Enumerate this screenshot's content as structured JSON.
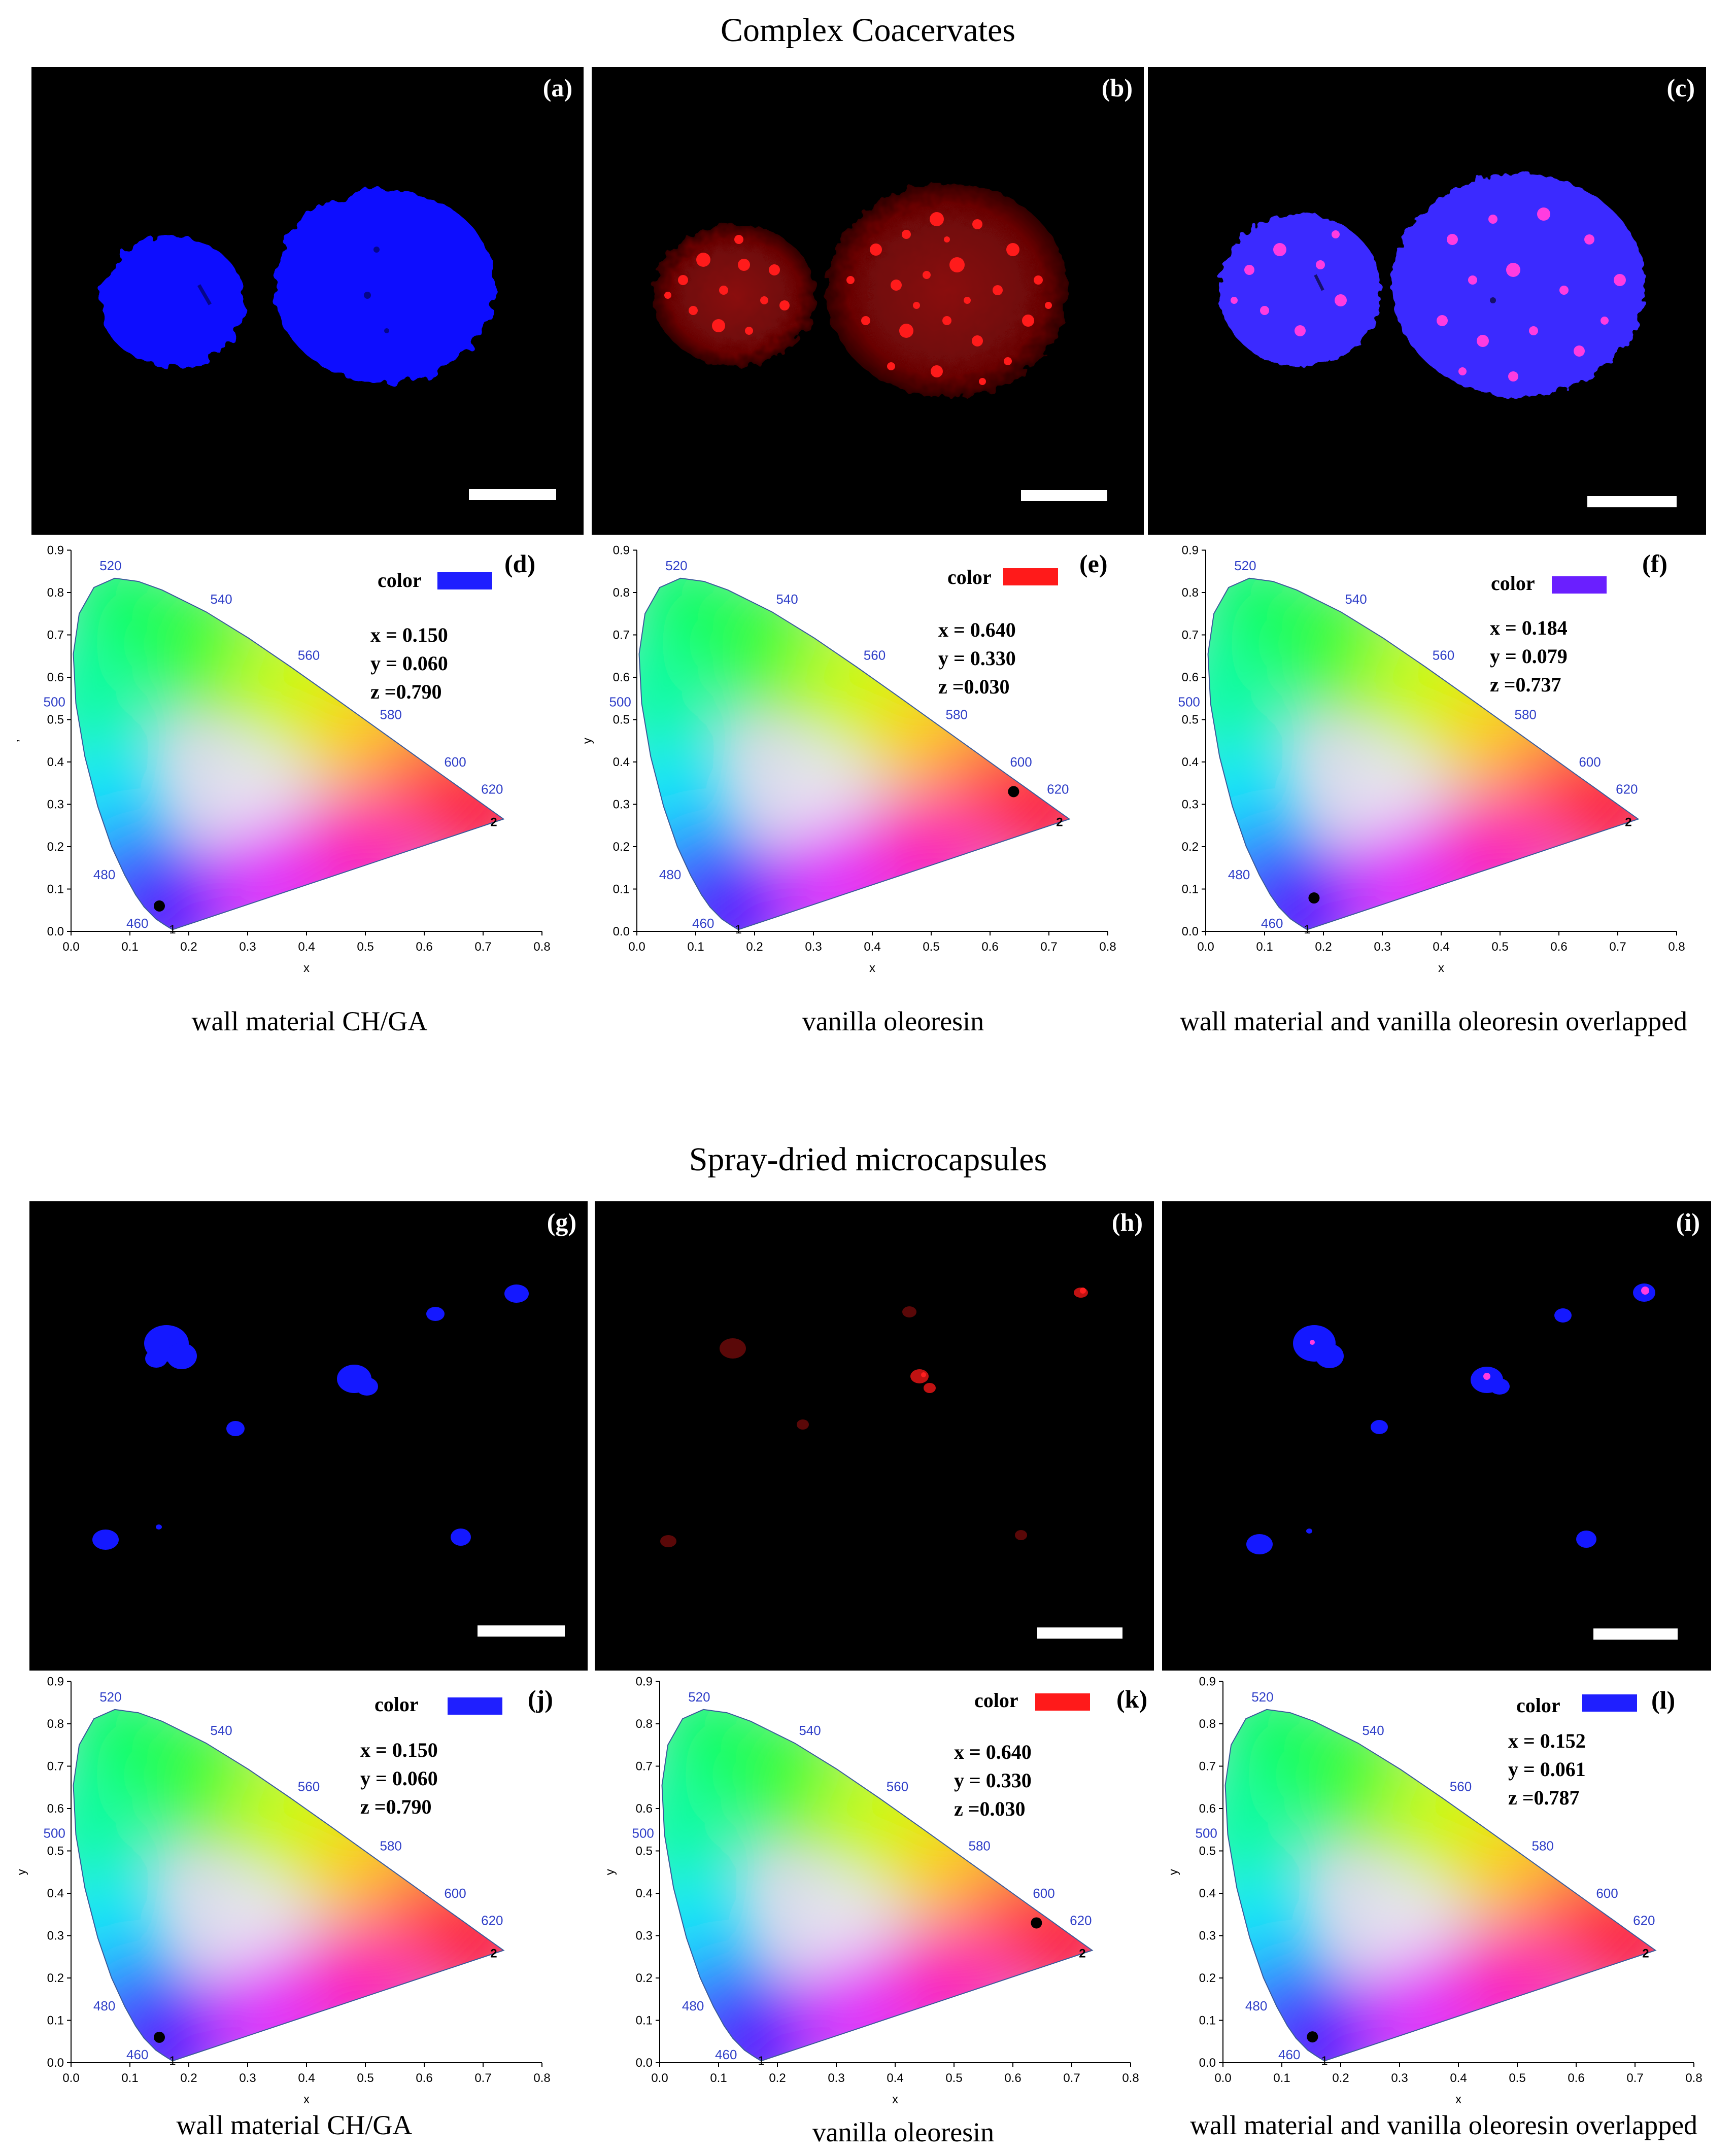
{
  "sections": [
    {
      "title": "Complex Coacervates",
      "micrographs": [
        {
          "letter": "(a)",
          "kind": "blue"
        },
        {
          "letter": "(b)",
          "kind": "red"
        },
        {
          "letter": "(c)",
          "kind": "overlap"
        }
      ],
      "charts": [
        {
          "letter": "(d)",
          "color_label": "color",
          "swatch": "#1f1fff",
          "x_line": "x = 0.150",
          "y_line": "y = 0.060",
          "z_line": "z =0.790",
          "caption": "wall material CH/GA",
          "ylabel": "’"
        },
        {
          "letter": "(e)",
          "color_label": "color",
          "swatch": "#ff1a1a",
          "x_line": "x = 0.640",
          "y_line": "y = 0.330",
          "z_line": "z =0.030",
          "caption": "vanilla oleoresin",
          "ylabel": "y"
        },
        {
          "letter": "(f)",
          "color_label": "color",
          "swatch": "#6a1fff",
          "x_line": "x = 0.184",
          "y_line": "y = 0.079",
          "z_line": "z =0.737",
          "caption": "wall material and vanilla oleoresin overlapped",
          "ylabel": ""
        }
      ]
    },
    {
      "title": "Spray-dried microcapsules",
      "micrographs": [
        {
          "letter": "(g)",
          "kind": "blue"
        },
        {
          "letter": "(h)",
          "kind": "red"
        },
        {
          "letter": "(i)",
          "kind": "overlap"
        }
      ],
      "charts": [
        {
          "letter": "(j)",
          "color_label": "color",
          "swatch": "#1f1fff",
          "x_line": "x = 0.150",
          "y_line": "y = 0.060",
          "z_line": "z =0.790",
          "caption": "wall material CH/GA",
          "ylabel": "y"
        },
        {
          "letter": "(k)",
          "color_label": "color",
          "swatch": "#ff1a1a",
          "x_line": "x = 0.640",
          "y_line": "y = 0.330",
          "z_line": "z =0.030",
          "caption": "vanilla oleoresin",
          "ylabel": "y"
        },
        {
          "letter": "(l)",
          "color_label": "color",
          "swatch": "#1f1fff",
          "x_line": "x = 0.152",
          "y_line": "y = 0.061",
          "z_line": "z =0.787",
          "caption": "wall material and vanilla oleoresin overlapped",
          "ylabel": "y"
        }
      ]
    }
  ],
  "chart_data": [
    {
      "panel": "(d)",
      "type": "scatter",
      "x": [
        0.15
      ],
      "y": [
        0.06
      ],
      "xlabel": "x",
      "ylabel": "’",
      "xlim": [
        0.0,
        0.8
      ],
      "ylim": [
        0.0,
        0.9
      ],
      "wavelength_labels": [
        "460",
        "480",
        "500",
        "520",
        "540",
        "560",
        "580",
        "600",
        "620"
      ]
    },
    {
      "panel": "(e)",
      "type": "scatter",
      "x": [
        0.64
      ],
      "y": [
        0.33
      ],
      "xlabel": "x",
      "ylabel": "y",
      "xlim": [
        0.0,
        0.8
      ],
      "ylim": [
        0.0,
        0.9
      ],
      "wavelength_labels": [
        "460",
        "480",
        "500",
        "520",
        "540",
        "560",
        "580",
        "600",
        "620"
      ]
    },
    {
      "panel": "(f)",
      "type": "scatter",
      "x": [
        0.184
      ],
      "y": [
        0.079
      ],
      "xlabel": "x",
      "ylabel": "",
      "xlim": [
        0.0,
        0.8
      ],
      "ylim": [
        0.0,
        0.9
      ],
      "wavelength_labels": [
        "460",
        "480",
        "500",
        "520",
        "540",
        "560",
        "580",
        "600",
        "620"
      ]
    },
    {
      "panel": "(j)",
      "type": "scatter",
      "x": [
        0.15
      ],
      "y": [
        0.06
      ],
      "xlabel": "x",
      "ylabel": "y",
      "xlim": [
        0.0,
        0.8
      ],
      "ylim": [
        0.0,
        0.9
      ],
      "wavelength_labels": [
        "460",
        "480",
        "500",
        "520",
        "540",
        "560",
        "580",
        "600",
        "620"
      ]
    },
    {
      "panel": "(k)",
      "type": "scatter",
      "x": [
        0.64
      ],
      "y": [
        0.33
      ],
      "xlabel": "x",
      "ylabel": "y",
      "xlim": [
        0.0,
        0.8
      ],
      "ylim": [
        0.0,
        0.9
      ],
      "wavelength_labels": [
        "460",
        "480",
        "500",
        "520",
        "540",
        "560",
        "580",
        "600",
        "620"
      ]
    },
    {
      "panel": "(l)",
      "type": "scatter",
      "x": [
        0.152
      ],
      "y": [
        0.061
      ],
      "xlabel": "x",
      "ylabel": "y",
      "xlim": [
        0.0,
        0.8
      ],
      "ylim": [
        0.0,
        0.9
      ],
      "wavelength_labels": [
        "460",
        "480",
        "500",
        "520",
        "540",
        "560",
        "580",
        "600",
        "620"
      ]
    }
  ]
}
